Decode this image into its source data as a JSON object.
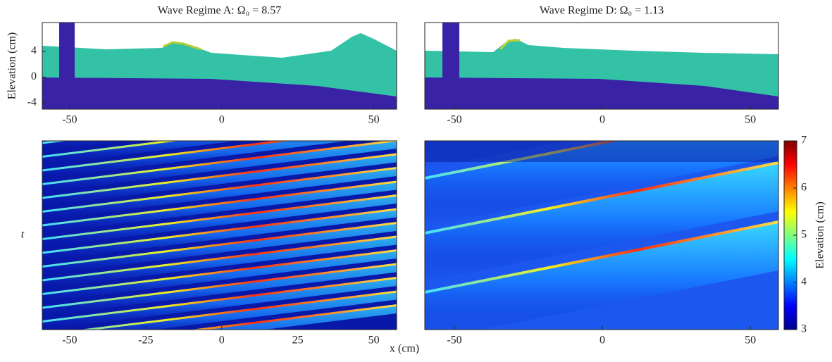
{
  "chart_data": [
    {
      "type": "profile",
      "title": "Wave Regime A: Ω₀ = 8.57",
      "y_label": "Elevation (cm)",
      "xlim": [
        -59,
        57.5
      ],
      "xticks": [
        -50,
        0,
        50
      ],
      "ylim": [
        -5,
        8.5
      ],
      "yticks": [
        -4,
        0,
        4
      ]
    },
    {
      "type": "profile",
      "title": "Wave Regime D: Ω₀ = 1.13",
      "xlim": [
        -60,
        59.5
      ],
      "xticks": [
        -50,
        0,
        50
      ],
      "ylim": [
        -5,
        8.5
      ]
    },
    {
      "type": "heatmap",
      "y_label": "t",
      "xlim": [
        -59,
        57.5
      ],
      "xticks": [
        -50,
        -25,
        0,
        25,
        50
      ]
    },
    {
      "type": "heatmap",
      "xlim": [
        -60,
        59.5
      ],
      "xticks": [
        -50,
        0,
        50
      ],
      "colorbar": {
        "label": "Elevation (cm)",
        "lim": [
          3,
          7
        ],
        "ticks": [
          3,
          4,
          5,
          6,
          7
        ]
      }
    }
  ],
  "x_label": "x (cm)"
}
